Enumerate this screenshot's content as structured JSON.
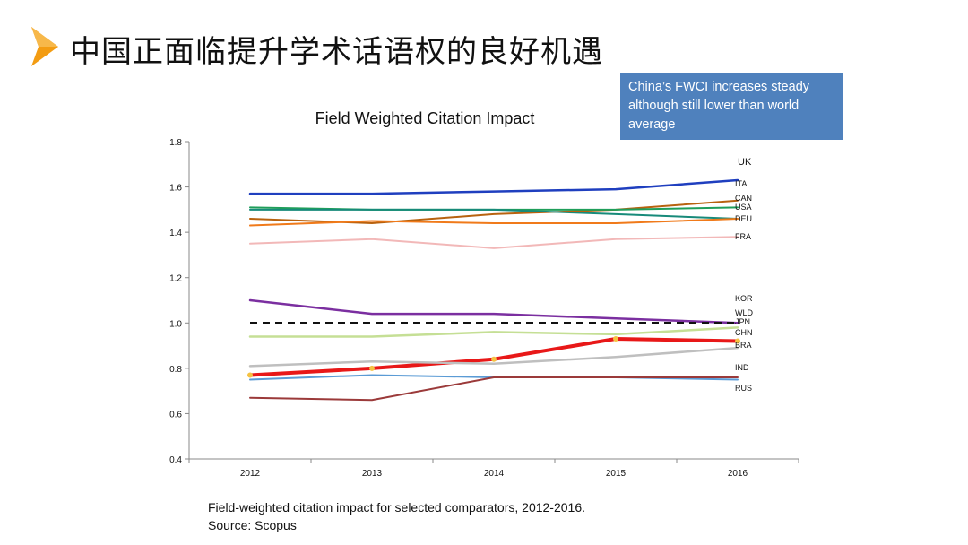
{
  "slide": {
    "title": "中国正面临提升学术话语权的良好机遇",
    "note": "China’s FWCI increases steady although still lower than world average",
    "caption_line1": "Field-weighted citation impact for selected comparators, 2012-2016.",
    "caption_line2": "Source: Scopus",
    "accent_color": "#f39c12",
    "arrow_icon": "play-arrow-icon"
  },
  "chart_data": {
    "type": "line",
    "title": "Field Weighted Citation Impact",
    "xlabel": "",
    "ylabel": "",
    "categories": [
      "2012",
      "2013",
      "2014",
      "2015",
      "2016"
    ],
    "ylim": [
      0.4,
      1.8
    ],
    "yticks": [
      "0.4",
      "0.6",
      "0.8",
      "1.0",
      "1.2",
      "1.4",
      "1.6",
      "1.8"
    ],
    "grid": false,
    "series": [
      {
        "name": "UK",
        "values": [
          1.57,
          1.57,
          1.58,
          1.59,
          1.63
        ],
        "color": "#1f3fbf",
        "width": 2.5
      },
      {
        "name": "ITA",
        "values": [
          1.46,
          1.44,
          1.48,
          1.5,
          1.54
        ],
        "color": "#b8620f",
        "width": 2
      },
      {
        "name": "CAN",
        "values": [
          1.51,
          1.5,
          1.5,
          1.5,
          1.51
        ],
        "color": "#1f9e5a",
        "width": 2
      },
      {
        "name": "USA",
        "values": [
          1.5,
          1.5,
          1.5,
          1.48,
          1.46
        ],
        "color": "#178a7a",
        "width": 2
      },
      {
        "name": "DEU",
        "values": [
          1.43,
          1.45,
          1.44,
          1.44,
          1.46
        ],
        "color": "#f07a1a",
        "width": 2
      },
      {
        "name": "FRA",
        "values": [
          1.35,
          1.37,
          1.33,
          1.37,
          1.38
        ],
        "color": "#f2b8b8",
        "width": 2
      },
      {
        "name": "KOR",
        "values": [
          1.1,
          1.04,
          1.04,
          1.02,
          1.0
        ],
        "color": "#7b2fa0",
        "width": 2.5
      },
      {
        "name": "WLD",
        "values": [
          1.0,
          1.0,
          1.0,
          1.0,
          1.0
        ],
        "color": "#111111",
        "width": 2.5,
        "dash": "8 6"
      },
      {
        "name": "JPN",
        "values": [
          0.94,
          0.94,
          0.96,
          0.95,
          0.98
        ],
        "color": "#c5df95",
        "width": 2.5
      },
      {
        "name": "CHN",
        "values": [
          0.77,
          0.8,
          0.84,
          0.93,
          0.92
        ],
        "color": "#e81818",
        "width": 4,
        "markers": true
      },
      {
        "name": "BRA",
        "values": [
          0.81,
          0.83,
          0.82,
          0.85,
          0.89
        ],
        "color": "#bfbfbf",
        "width": 2.5
      },
      {
        "name": "IND",
        "values": [
          0.75,
          0.77,
          0.76,
          0.76,
          0.75
        ],
        "color": "#5b9bd5",
        "width": 2
      },
      {
        "name": "RUS",
        "values": [
          0.67,
          0.66,
          0.76,
          0.76,
          0.76
        ],
        "color": "#9b3a3a",
        "width": 2
      }
    ],
    "end_labels": [
      "UK",
      "ITA",
      "CAN",
      "USA",
      "DEU",
      "FRA",
      "KOR",
      "WLD",
      "JPN",
      "CHN",
      "BRA",
      "IND",
      "RUS"
    ]
  }
}
